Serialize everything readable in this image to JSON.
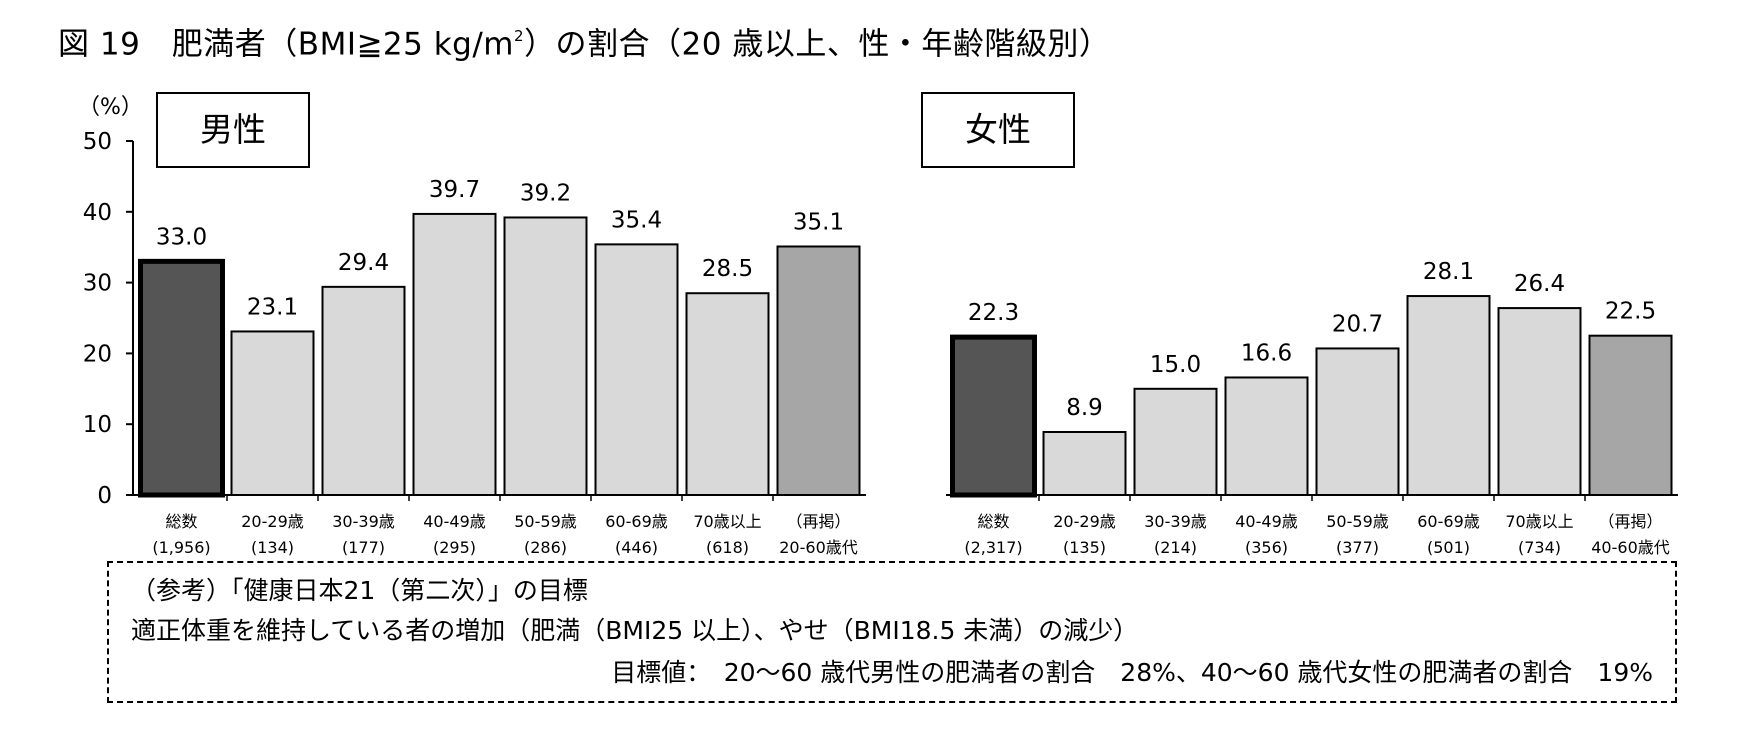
{
  "title": {
    "pre": "図 19　肥満者（BMI≧25 kg/m",
    "sup": "2",
    "post": "）の割合（20 歳以上、性・年齢階級別）"
  },
  "chart_data": {
    "type": "bar",
    "unit_label": "（%）",
    "ylim": [
      0,
      50
    ],
    "yticks": [
      "0",
      "10",
      "20",
      "30",
      "40",
      "50"
    ],
    "grid": false,
    "panels": [
      {
        "label": "男性",
        "categories": [
          {
            "line1": "総数",
            "line2": "(1,956)"
          },
          {
            "line1": "20-29歳",
            "line2": "(134)"
          },
          {
            "line1": "30-39歳",
            "line2": "(177)"
          },
          {
            "line1": "40-49歳",
            "line2": "(295)"
          },
          {
            "line1": "50-59歳",
            "line2": "(286)"
          },
          {
            "line1": "60-69歳",
            "line2": "(446)"
          },
          {
            "line1": "70歳以上",
            "line2": "(618)"
          },
          {
            "line1": "（再掲）",
            "line2": "20-60歳代"
          }
        ],
        "values": [
          33.0,
          23.1,
          29.4,
          39.7,
          39.2,
          35.4,
          28.5,
          35.1
        ],
        "value_labels": [
          "33.0",
          "23.1",
          "29.4",
          "39.7",
          "39.2",
          "35.4",
          "28.5",
          "35.1"
        ]
      },
      {
        "label": "女性",
        "categories": [
          {
            "line1": "総数",
            "line2": "(2,317)"
          },
          {
            "line1": "20-29歳",
            "line2": "(135)"
          },
          {
            "line1": "30-39歳",
            "line2": "(214)"
          },
          {
            "line1": "40-49歳",
            "line2": "(356)"
          },
          {
            "line1": "50-59歳",
            "line2": "(377)"
          },
          {
            "line1": "60-69歳",
            "line2": "(501)"
          },
          {
            "line1": "70歳以上",
            "line2": "(734)"
          },
          {
            "line1": "（再掲）",
            "line2": "40-60歳代"
          }
        ],
        "values": [
          22.3,
          8.9,
          15.0,
          16.6,
          20.7,
          28.1,
          26.4,
          22.5
        ],
        "value_labels": [
          "22.3",
          "8.9",
          "15.0",
          "16.6",
          "20.7",
          "28.1",
          "26.4",
          "22.5"
        ]
      }
    ],
    "colors": {
      "total": "#555555",
      "age_group": "#d9d9d9",
      "recap": "#a6a6a6",
      "outline": "#000000"
    }
  },
  "note": {
    "line1": "（参考）「健康日本21（第二次）」の目標",
    "line2": "適正体重を維持している者の増加（肥満（BMI25 以上）、やせ（BMI18.5 未満）の減少）",
    "line3": "目標値：　20～60 歳代男性の肥満者の割合　28%、40～60 歳代女性の肥満者の割合　19%"
  }
}
